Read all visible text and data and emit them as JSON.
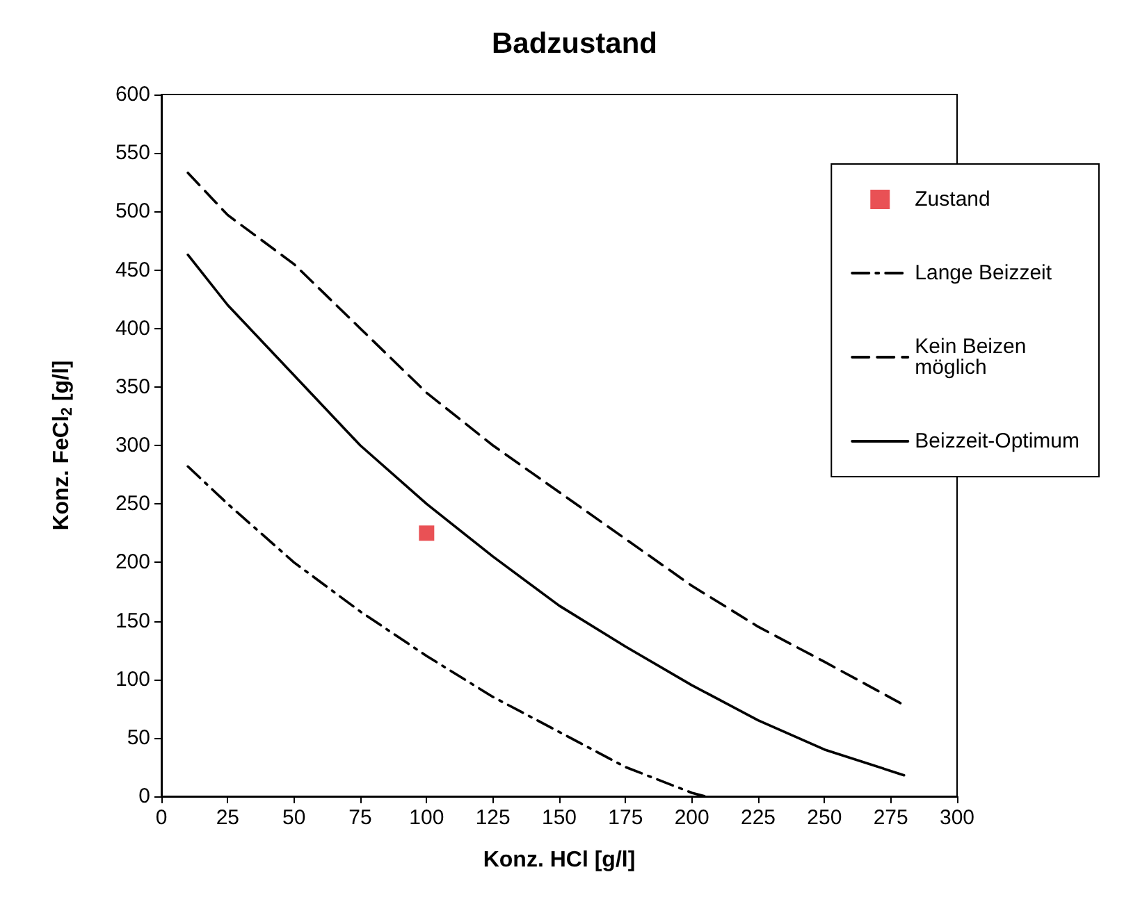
{
  "chart_data": {
    "type": "line",
    "title": "Badzustand",
    "xlabel": "Konz. HCl [g/l]",
    "ylabel": "Konz. FeCl$_{2}$ [g/l]",
    "xlim": [
      0,
      300
    ],
    "xticks": [
      0,
      25,
      50,
      75,
      100,
      125,
      150,
      175,
      200,
      225,
      250,
      275,
      300
    ],
    "ylim": [
      0,
      600
    ],
    "yticks": [
      0,
      50,
      100,
      150,
      200,
      250,
      300,
      350,
      400,
      450,
      500,
      550,
      600
    ],
    "grid": false,
    "legend": "right",
    "series": [
      {
        "name": "Zustand",
        "type": "scatter",
        "marker": "square",
        "color": "#e3262b",
        "x": [
          100
        ],
        "values": [
          225
        ]
      },
      {
        "name": "Lange Beizzeit",
        "type": "line",
        "line_style": "dashdot",
        "marker": "none",
        "color": "#000000",
        "x": [
          10,
          25,
          50,
          75,
          100,
          125,
          150,
          175,
          200,
          205
        ],
        "values": [
          282,
          250,
          200,
          158,
          120,
          85,
          55,
          25,
          3,
          0
        ]
      },
      {
        "name": "Kein Beizen möglich",
        "type": "line",
        "line_style": "dashed",
        "marker": "none",
        "color": "#000000",
        "x": [
          10,
          25,
          50,
          75,
          100,
          125,
          150,
          175,
          200,
          225,
          250,
          280
        ],
        "values": [
          533,
          497,
          455,
          400,
          345,
          300,
          260,
          220,
          180,
          145,
          115,
          78
        ]
      },
      {
        "name": "Beizzeit-Optimum",
        "type": "line",
        "line_style": "solid",
        "marker": "none",
        "color": "#000000",
        "x": [
          10,
          25,
          50,
          75,
          100,
          125,
          150,
          175,
          200,
          225,
          250,
          280
        ],
        "values": [
          463,
          420,
          360,
          300,
          250,
          205,
          163,
          128,
          95,
          65,
          40,
          18
        ]
      }
    ]
  }
}
